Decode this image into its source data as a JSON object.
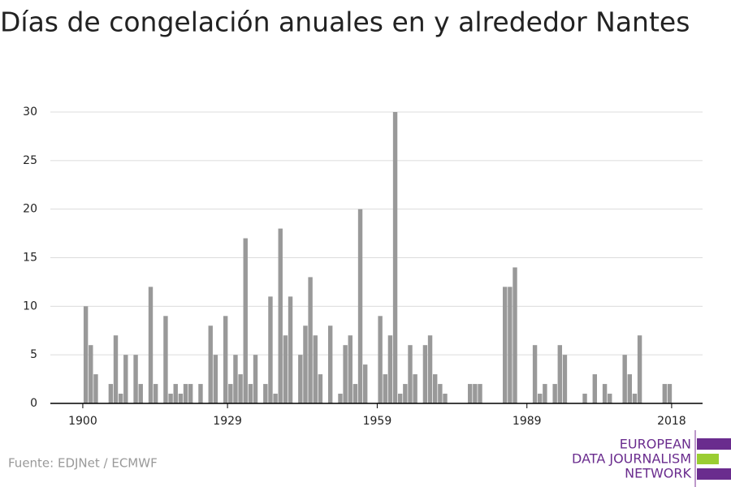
{
  "chart_data": {
    "type": "bar",
    "title": "Días de congelación anuales en y alrededor Nantes",
    "x": [
      1900,
      1901,
      1902,
      1905,
      1906,
      1907,
      1908,
      1910,
      1911,
      1913,
      1914,
      1916,
      1917,
      1918,
      1919,
      1920,
      1921,
      1923,
      1925,
      1926,
      1928,
      1929,
      1930,
      1931,
      1932,
      1933,
      1934,
      1936,
      1937,
      1938,
      1939,
      1940,
      1941,
      1943,
      1944,
      1945,
      1946,
      1947,
      1949,
      1951,
      1952,
      1953,
      1954,
      1955,
      1956,
      1959,
      1960,
      1961,
      1962,
      1963,
      1964,
      1965,
      1966,
      1968,
      1969,
      1970,
      1971,
      1972,
      1977,
      1978,
      1979,
      1984,
      1985,
      1986,
      1990,
      1991,
      1992,
      1994,
      1995,
      1996,
      2000,
      2002,
      2004,
      2005,
      2008,
      2009,
      2010,
      2011,
      2016,
      2017
    ],
    "values": [
      10,
      6,
      3,
      2,
      7,
      1,
      5,
      5,
      2,
      12,
      2,
      9,
      1,
      2,
      1,
      2,
      2,
      2,
      8,
      5,
      9,
      2,
      5,
      3,
      17,
      2,
      5,
      2,
      11,
      1,
      18,
      7,
      11,
      5,
      8,
      13,
      7,
      3,
      8,
      1,
      6,
      7,
      2,
      20,
      4,
      9,
      3,
      7,
      30,
      1,
      2,
      6,
      3,
      6,
      7,
      3,
      2,
      1,
      2,
      2,
      2,
      12,
      12,
      14,
      6,
      1,
      2,
      2,
      6,
      5,
      1,
      3,
      2,
      1,
      5,
      3,
      1,
      7,
      2,
      2
    ],
    "color": "#999999",
    "xlim": [
      1893.5,
      2024.2
    ],
    "xticks": [
      1900,
      1929,
      1959,
      1989,
      2018
    ],
    "ylim": [
      0,
      30
    ],
    "yticks": [
      0,
      5,
      10,
      15,
      20,
      25,
      30
    ],
    "grid": true,
    "source": "Fuente: EDJNet / ECMWF",
    "logo": [
      "EUROPEAN",
      "DATA JOURNALISM",
      "NETWORK"
    ]
  }
}
